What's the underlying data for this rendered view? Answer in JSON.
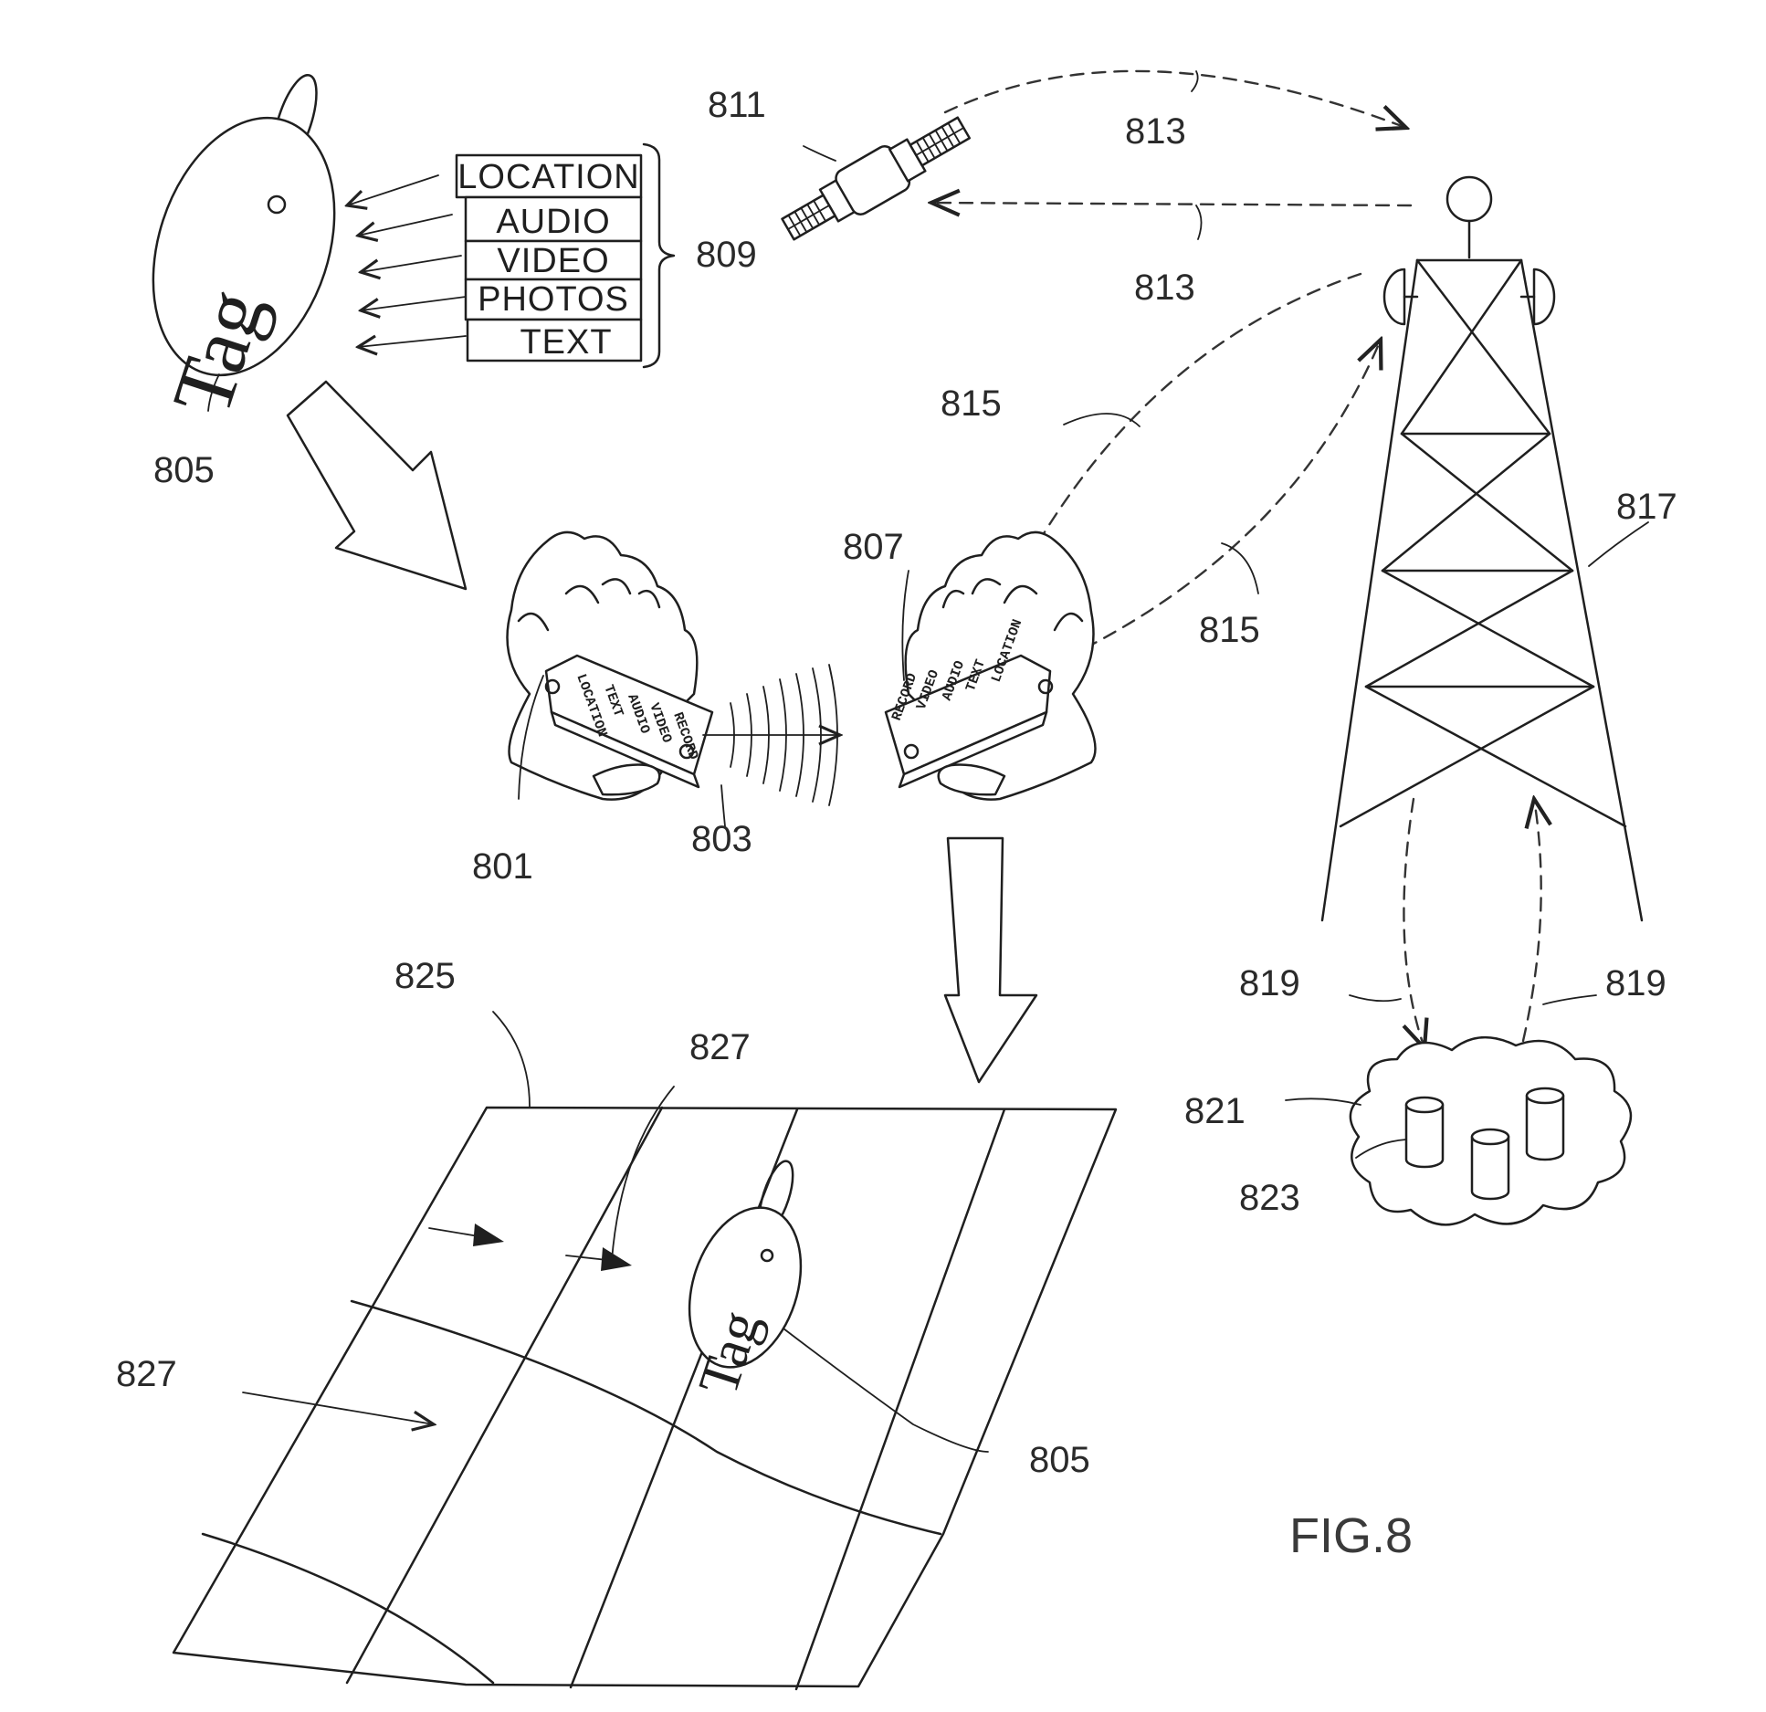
{
  "figure": {
    "caption": "FIG.8",
    "tag_text": "Tag",
    "data_types": [
      "LOCATION",
      "AUDIO",
      "VIDEO",
      "PHOTOS",
      "TEXT"
    ],
    "device_key_labels": [
      "LOCATION",
      "TEXT",
      "AUDIO",
      "VIDEO",
      "RECORD"
    ],
    "reference_numerals": {
      "satellite": "811",
      "satellite_link_top": "813",
      "satellite_link_bottom": "813",
      "tag_top": "805",
      "data_types_bracket": "809",
      "wireless_link_upper": "815",
      "wireless_link_lower": "815",
      "tower": "817",
      "receiving_device": "807",
      "sending_device": "801",
      "transfer_signal": "803",
      "map": "825",
      "map_marker_top": "827",
      "map_marker_left": "827",
      "tag_on_map": "805",
      "network_link_left": "819",
      "network_link_right": "819",
      "cloud": "821",
      "databases": "823"
    }
  }
}
